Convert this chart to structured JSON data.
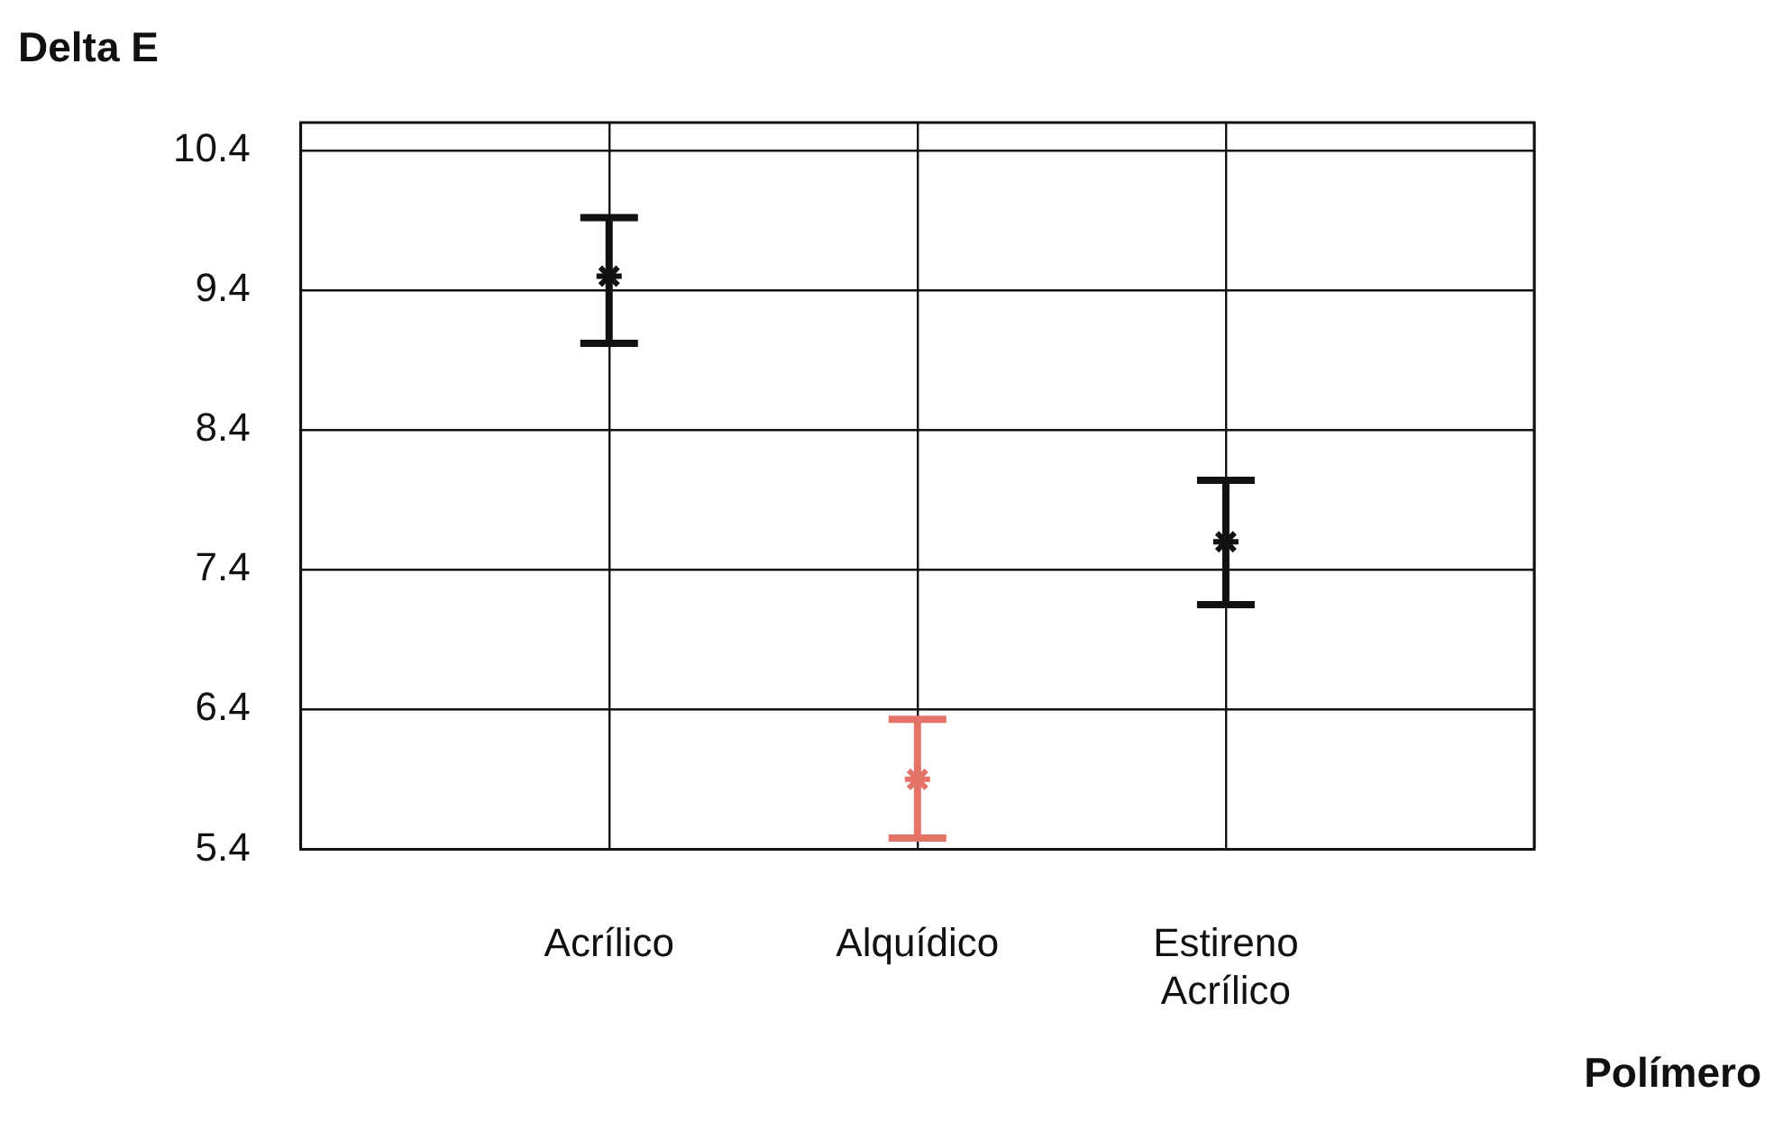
{
  "chart_data": {
    "type": "scatter",
    "ylabel": "Delta E",
    "xlabel": "Polímero",
    "categories": [
      null,
      "Acrílico",
      "Alquídico",
      "Estireno Acrílico",
      null
    ],
    "values": [
      null,
      9.5,
      5.9,
      7.6,
      null
    ],
    "errors": [
      null,
      [
        9.02,
        9.92
      ],
      [
        5.48,
        6.33
      ],
      [
        7.15,
        8.04
      ],
      null
    ],
    "colors": [
      "#111111",
      "#111111",
      "#e57368",
      "#111111",
      "#111111"
    ],
    "ylim": [
      5.4,
      10.6
    ],
    "yticks": [
      5.4,
      6.4,
      7.4,
      8.4,
      9.4,
      10.4
    ],
    "grid": true,
    "marker": "cross",
    "legend": false
  }
}
